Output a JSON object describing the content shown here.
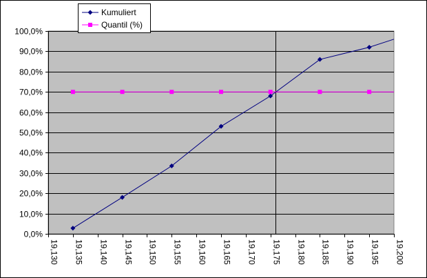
{
  "chart_data": {
    "type": "line",
    "title": "",
    "xlabel": "",
    "ylabel": "",
    "x_ticks": [
      "19,130",
      "19,135",
      "19,140",
      "19,145",
      "19,150",
      "19,155",
      "19,160",
      "19,165",
      "19,170",
      "19,175",
      "19,180",
      "19,185",
      "19,190",
      "19,195",
      "19,200"
    ],
    "y_ticks": [
      "0,0%",
      "10,0%",
      "20,0%",
      "30,0%",
      "40,0%",
      "50,0%",
      "60,0%",
      "70,0%",
      "80,0%",
      "90,0%",
      "100,0%"
    ],
    "xlim": [
      19.13,
      19.2
    ],
    "ylim": [
      0,
      100
    ],
    "grid": "horizontal",
    "legend_position": "top-left",
    "plot_background": "#c0c0c0",
    "series": [
      {
        "name": "Kumuliert",
        "color": "#000080",
        "marker": "diamond",
        "points": [
          {
            "x": 19.135,
            "y": 2.8
          },
          {
            "x": 19.145,
            "y": 18.0
          },
          {
            "x": 19.155,
            "y": 33.5
          },
          {
            "x": 19.165,
            "y": 53.0
          },
          {
            "x": 19.175,
            "y": 68.0
          },
          {
            "x": 19.185,
            "y": 86.0
          },
          {
            "x": 19.195,
            "y": 92.0
          }
        ],
        "extends_to": {
          "x": 19.2,
          "y": 96.0
        }
      },
      {
        "name": "Quantil (%)",
        "color": "#ff00ff",
        "marker": "square",
        "points": [
          {
            "x": 19.135,
            "y": 70
          },
          {
            "x": 19.145,
            "y": 70
          },
          {
            "x": 19.155,
            "y": 70
          },
          {
            "x": 19.165,
            "y": 70
          },
          {
            "x": 19.175,
            "y": 70
          },
          {
            "x": 19.185,
            "y": 70
          },
          {
            "x": 19.195,
            "y": 70
          }
        ],
        "extends_to": {
          "x": 19.2,
          "y": 70
        }
      }
    ],
    "vertical_marker": {
      "x": 19.176,
      "color": "#000000"
    }
  }
}
